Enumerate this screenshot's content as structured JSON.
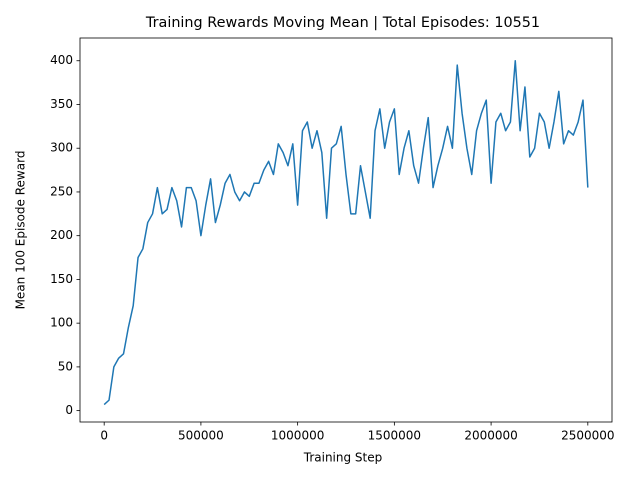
{
  "chart_data": {
    "type": "line",
    "title": "Training Rewards Moving Mean | Total Episodes: 10551",
    "x_label": "Training Step",
    "y_label": "Mean 100 Episode Reward",
    "x": [
      0,
      25000,
      50000,
      75000,
      100000,
      125000,
      150000,
      175000,
      200000,
      225000,
      250000,
      275000,
      300000,
      325000,
      350000,
      375000,
      400000,
      425000,
      450000,
      475000,
      500000,
      525000,
      550000,
      575000,
      600000,
      625000,
      650000,
      675000,
      700000,
      725000,
      750000,
      775000,
      800000,
      825000,
      850000,
      875000,
      900000,
      925000,
      950000,
      975000,
      1000000,
      1025000,
      1050000,
      1075000,
      1100000,
      1125000,
      1150000,
      1175000,
      1200000,
      1225000,
      1250000,
      1275000,
      1300000,
      1325000,
      1350000,
      1375000,
      1400000,
      1425000,
      1450000,
      1475000,
      1500000,
      1525000,
      1550000,
      1575000,
      1600000,
      1625000,
      1650000,
      1675000,
      1700000,
      1725000,
      1750000,
      1775000,
      1800000,
      1825000,
      1850000,
      1875000,
      1900000,
      1925000,
      1950000,
      1975000,
      2000000,
      2025000,
      2050000,
      2075000,
      2100000,
      2125000,
      2150000,
      2175000,
      2200000,
      2225000,
      2250000,
      2275000,
      2300000,
      2325000,
      2350000,
      2375000,
      2400000,
      2425000,
      2450000,
      2475000,
      2500000
    ],
    "series": [
      {
        "name": "Mean 100 Episode Reward",
        "color": "#1f77b4",
        "values": [
          7,
          12,
          50,
          60,
          65,
          95,
          120,
          175,
          185,
          215,
          225,
          255,
          225,
          230,
          255,
          240,
          210,
          255,
          255,
          240,
          200,
          235,
          265,
          215,
          235,
          260,
          270,
          250,
          240,
          250,
          245,
          260,
          260,
          275,
          285,
          270,
          305,
          295,
          280,
          305,
          235,
          320,
          330,
          300,
          320,
          295,
          220,
          300,
          305,
          325,
          270,
          225,
          225,
          280,
          250,
          220,
          320,
          345,
          300,
          330,
          345,
          270,
          300,
          320,
          280,
          260,
          300,
          335,
          255,
          280,
          300,
          325,
          300,
          395,
          340,
          300,
          270,
          320,
          340,
          355,
          260,
          330,
          340,
          320,
          330,
          400,
          320,
          370,
          290,
          300,
          340,
          330,
          300,
          330,
          365,
          305,
          320,
          315,
          330,
          355,
          255
        ]
      }
    ],
    "xlim": [
      -125000,
      2625000
    ],
    "ylim": [
      -13,
      426
    ],
    "xticks": [
      0,
      500000,
      1000000,
      1500000,
      2000000,
      2500000
    ],
    "yticks": [
      0,
      50,
      100,
      150,
      200,
      250,
      300,
      350,
      400
    ]
  }
}
